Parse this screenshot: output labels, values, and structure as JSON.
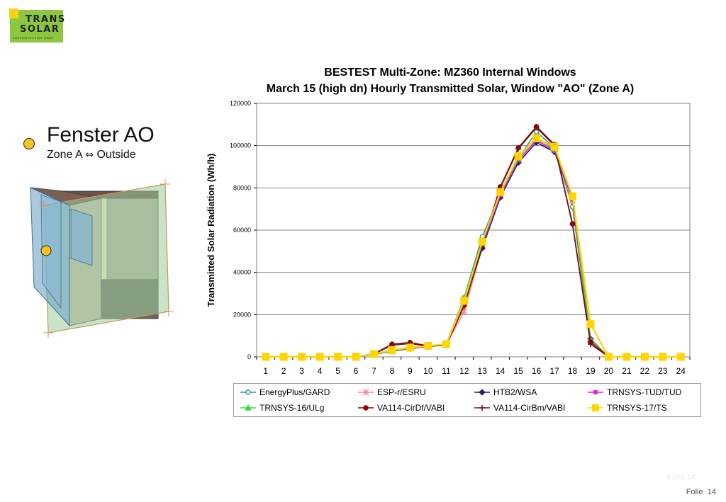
{
  "logo": {
    "line1": "TRANS",
    "line2": "SOLAR",
    "line3": "ENERGIETECHNIK GMBH"
  },
  "legend": {
    "title": "Fenster AO",
    "subtitle_left": "Zone A",
    "arrow": "⇔",
    "subtitle_right": "Outside"
  },
  "footer": {
    "date": "8.Dez.14",
    "folie_label": "Folie",
    "page": "14"
  },
  "chart_data": {
    "type": "line",
    "title": "BESTEST Multi-Zone: MZ360 Internal Windows",
    "subtitle": "March 15 (high dn) Hourly Transmitted Solar, Window \"AO\" (Zone A)",
    "xlabel": "",
    "ylabel": "Transmitted Solar Radiation (Wh/h)",
    "ylim": [
      0,
      120000
    ],
    "yticks": [
      0,
      20000,
      40000,
      60000,
      80000,
      100000,
      120000
    ],
    "grid": "horizontal",
    "legend_position": "bottom",
    "x": [
      1,
      2,
      3,
      4,
      5,
      6,
      7,
      8,
      9,
      10,
      11,
      12,
      13,
      14,
      15,
      16,
      17,
      18,
      19,
      20,
      21,
      22,
      23,
      24
    ],
    "series": [
      {
        "name": "EnergyPlus/GARD",
        "color": "#2a9d8f",
        "marker": "open-circle",
        "values": [
          0,
          0,
          0,
          0,
          0,
          0,
          1200,
          3000,
          4300,
          5200,
          6000,
          28000,
          57000,
          77000,
          94000,
          106500,
          99000,
          71000,
          8000,
          0,
          0,
          0,
          0,
          0
        ]
      },
      {
        "name": "ESP-r/ESRU",
        "color": "#f08a8a",
        "marker": "asterisk",
        "values": [
          0,
          0,
          0,
          0,
          0,
          0,
          1200,
          2800,
          4000,
          5000,
          5800,
          21500,
          52000,
          76000,
          93000,
          103000,
          98000,
          74000,
          8000,
          0,
          0,
          0,
          0,
          0
        ]
      },
      {
        "name": "HTB2/WSA",
        "color": "#1a237e",
        "marker": "diamond",
        "values": [
          0,
          0,
          0,
          0,
          0,
          0,
          1100,
          2700,
          3900,
          4900,
          5600,
          25000,
          51500,
          75500,
          92000,
          101500,
          97000,
          75000,
          8500,
          0,
          0,
          0,
          0,
          0
        ]
      },
      {
        "name": "TRNSYS-TUD/TUD",
        "color": "#e81cd8",
        "marker": "square-small",
        "values": [
          0,
          0,
          0,
          0,
          0,
          0,
          1200,
          2900,
          4100,
          5000,
          5800,
          26000,
          53000,
          76500,
          93000,
          102500,
          97500,
          75000,
          8000,
          0,
          0,
          0,
          0,
          0
        ]
      },
      {
        "name": "TRNSYS-16/ULg",
        "color": "#33dd33",
        "marker": "triangle",
        "values": [
          0,
          0,
          0,
          0,
          0,
          0,
          1200,
          2900,
          4200,
          5100,
          5900,
          27500,
          54500,
          77500,
          94000,
          104000,
          98500,
          76000,
          8200,
          0,
          0,
          0,
          0,
          0
        ]
      },
      {
        "name": "VA114-CirDf/VABI",
        "color": "#8b0000",
        "marker": "filled-circle",
        "values": [
          0,
          0,
          0,
          0,
          0,
          0,
          1500,
          6000,
          6800,
          5200,
          5700,
          24500,
          53000,
          80500,
          99000,
          109000,
          100500,
          63000,
          7000,
          0,
          0,
          0,
          0,
          0
        ]
      },
      {
        "name": "VA114-CirBm/VABI",
        "color": "#7a1020",
        "marker": "plus",
        "values": [
          0,
          0,
          0,
          0,
          0,
          0,
          1400,
          5500,
          6300,
          5000,
          5600,
          24000,
          53000,
          80000,
          98500,
          108500,
          100000,
          62500,
          6000,
          0,
          0,
          0,
          0,
          0
        ]
      },
      {
        "name": "TRNSYS-17/TS",
        "color": "#ffd400",
        "marker": "square",
        "values": [
          0,
          0,
          0,
          0,
          0,
          0,
          1300,
          3200,
          4400,
          5200,
          6000,
          26500,
          54500,
          78000,
          95000,
          103500,
          99500,
          76000,
          15500,
          0,
          0,
          0,
          0,
          0
        ]
      }
    ]
  }
}
